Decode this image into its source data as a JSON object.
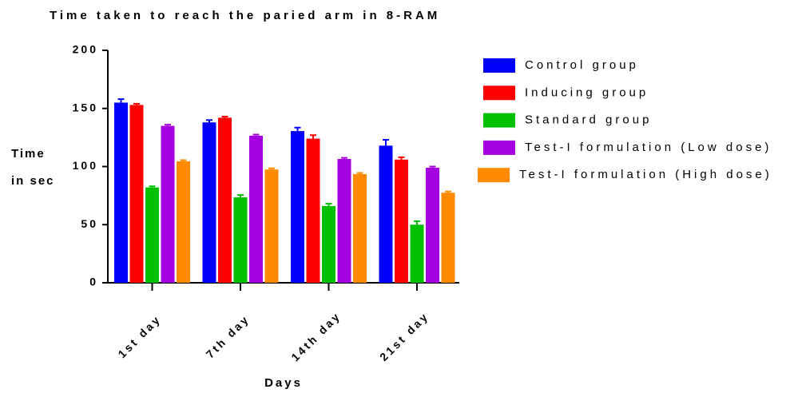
{
  "chart_data": {
    "type": "bar",
    "title": "Time taken to reach the paried arm in 8-RAM",
    "ylabel": "Time in sec",
    "xlabel": "Days",
    "categories": [
      "1st day",
      "7th day",
      "14th day",
      "21st day"
    ],
    "series": [
      {
        "name": "Control group",
        "color": "#0000ff",
        "values": [
          155,
          138,
          130.5,
          118
        ],
        "errors": [
          3,
          2,
          3,
          5
        ]
      },
      {
        "name": "Inducing group",
        "color": "#ff0000",
        "values": [
          153,
          142,
          124,
          106
        ],
        "errors": [
          1,
          1,
          3,
          2
        ]
      },
      {
        "name": "Standard group",
        "color": "#00c000",
        "values": [
          82,
          73.5,
          66,
          50
        ],
        "errors": [
          1,
          2,
          2,
          3
        ]
      },
      {
        "name": "Test-I formulation (Low dose)",
        "color": "#a400e0",
        "values": [
          135,
          126.5,
          106.5,
          99
        ],
        "errors": [
          1,
          1,
          1,
          1
        ]
      },
      {
        "name": "Test-I formulation (High dose)",
        "color": "#ff8a00",
        "values": [
          104.5,
          97.5,
          93.5,
          77.5
        ],
        "errors": [
          1,
          1,
          1,
          1
        ]
      }
    ],
    "ylim": [
      0,
      200
    ],
    "yticks": [
      0,
      50,
      100,
      150,
      200
    ],
    "legend": "right"
  }
}
